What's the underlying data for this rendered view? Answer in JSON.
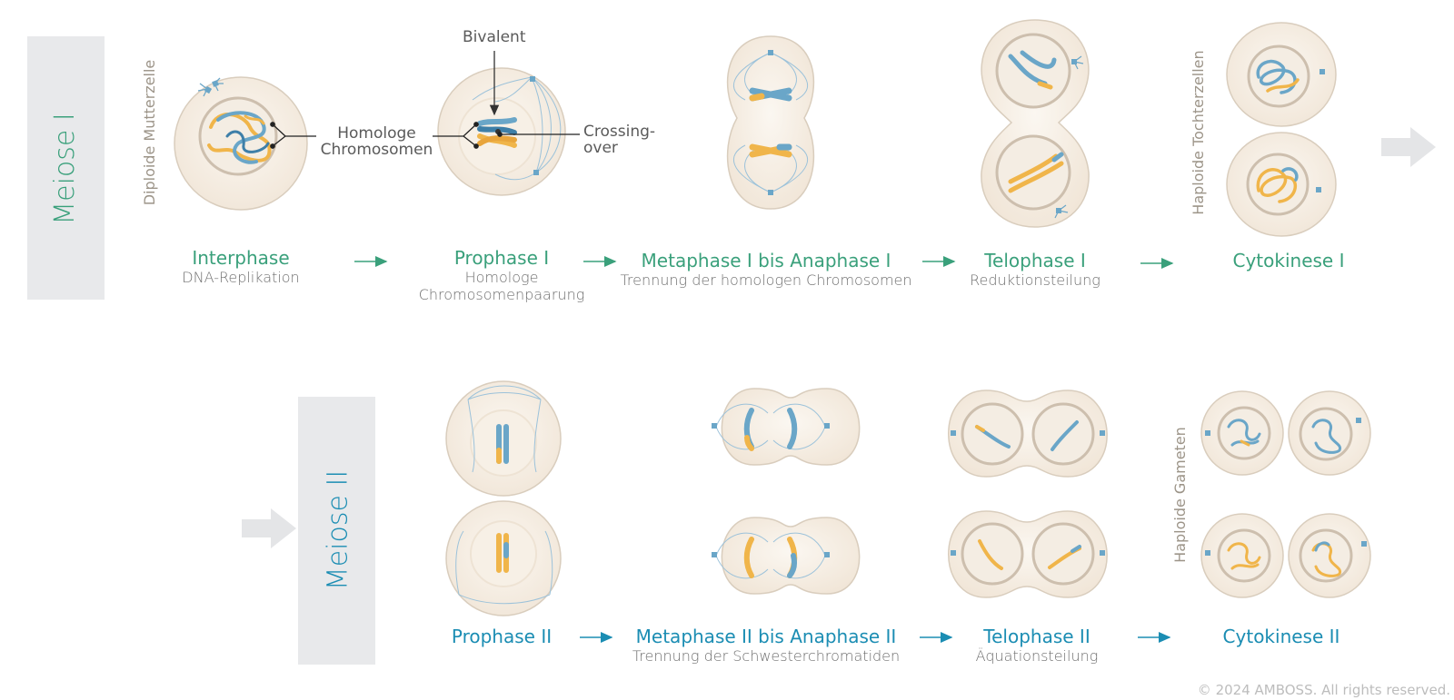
{
  "row1": {
    "band_label": "Meiose I",
    "side_label": "Diploide Mutterzelle",
    "right_label": "Haploide Tochterzellen",
    "stages": [
      {
        "title": "Interphase",
        "subtitle": "DNA-Replikation"
      },
      {
        "title": "Prophase I",
        "subtitle": "Homologe Chromosomenpaarung"
      },
      {
        "title": "Metaphase I bis Anaphase I",
        "subtitle": "Trennung der homologen Chromosomen"
      },
      {
        "title": "Telophase I",
        "subtitle": "Reduktionsteilung"
      },
      {
        "title": "Cytokinese I",
        "subtitle": ""
      }
    ],
    "annotations": {
      "bivalent": "Bivalent",
      "homologe": "Homologe Chromosomen",
      "crossing": "Crossing-over"
    }
  },
  "row2": {
    "band_label": "Meiose II",
    "right_label": "Haploide Gameten",
    "stages": [
      {
        "title": "Prophase II",
        "subtitle": ""
      },
      {
        "title": "Metaphase II bis Anaphase II",
        "subtitle": "Trennung der Schwesterchromatiden"
      },
      {
        "title": "Telophase II",
        "subtitle": "Äquationsteilung"
      },
      {
        "title": "Cytokinese II",
        "subtitle": ""
      }
    ]
  },
  "colors": {
    "meiose1": "#3aa07b",
    "meiose2": "#1b8db3",
    "chrom_blue": "#6aa6c8",
    "chrom_orange": "#f0b54a",
    "cell_fill": "#f6efe6",
    "cell_stroke": "#d9cdbd"
  },
  "copyright": "© 2024 AMBOSS. All rights reserved."
}
